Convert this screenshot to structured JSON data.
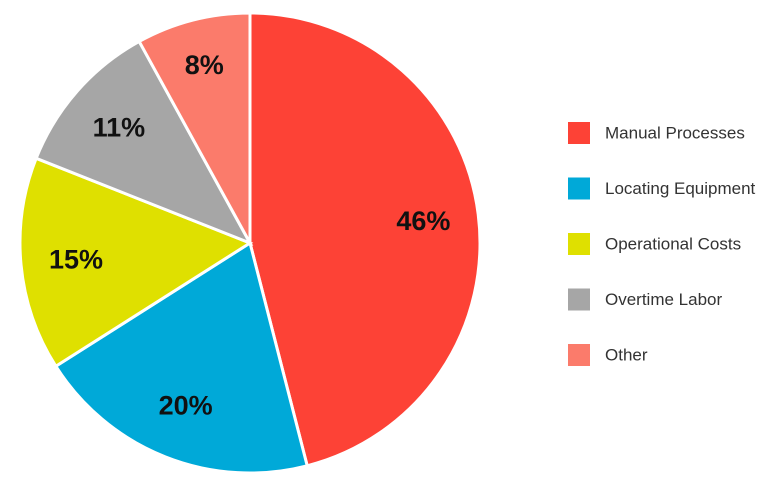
{
  "chart_data": {
    "type": "pie",
    "categories": [
      "Manual Processes",
      "Locating Equipment",
      "Operational Costs",
      "Overtime Labor",
      "Other"
    ],
    "values": [
      46,
      20,
      15,
      11,
      8
    ],
    "value_labels": [
      "46%",
      "20%",
      "15%",
      "11%",
      "8%"
    ],
    "colors": [
      "#fd4236",
      "#00a9d8",
      "#dfe000",
      "#a6a6a6",
      "#fb7b6b"
    ],
    "legend": "right"
  }
}
